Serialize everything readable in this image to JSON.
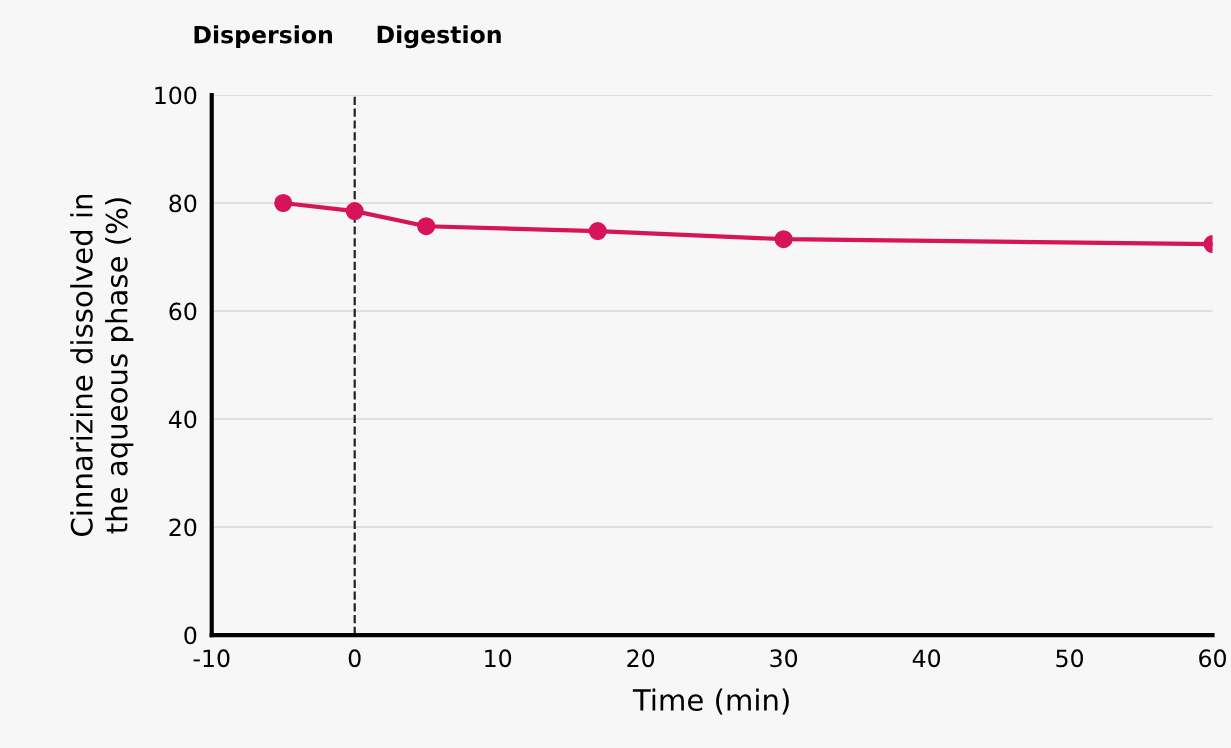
{
  "chart_data": {
    "type": "line",
    "xlabel": "Time (min)",
    "ylabel": "Cinnarizine dissolved in\nthe aqueous phase (%)",
    "x": [
      -5,
      0,
      5,
      17,
      30,
      60
    ],
    "series": [
      {
        "color": "#d6145a",
        "values": [
          80,
          78.5,
          75.7,
          74.8,
          73.3,
          72.4
        ]
      }
    ],
    "xlim": [
      -10,
      60
    ],
    "xticks": [
      -10,
      0,
      10,
      20,
      30,
      40,
      50,
      60
    ],
    "ylim": [
      0,
      100
    ],
    "yticks": [
      0,
      20,
      40,
      60,
      80,
      100
    ],
    "grid": "y",
    "marker": "circle",
    "line_style": "solid",
    "ref_lines": [
      {
        "axis": "x",
        "value": 0,
        "color": "#222222",
        "line_style": "dashed"
      }
    ],
    "annotations": [
      "Dispersion",
      "Digestion"
    ]
  }
}
